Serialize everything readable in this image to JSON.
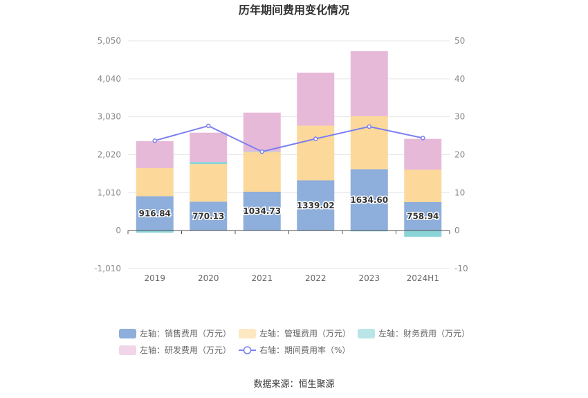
{
  "chart_data": {
    "type": "bar",
    "title": "历年期间费用变化情况",
    "categories": [
      "2019",
      "2020",
      "2021",
      "2022",
      "2023",
      "2024H1"
    ],
    "y_left": {
      "min": -1010,
      "max": 5050,
      "ticks": [
        -1010,
        0,
        1010,
        2020,
        3030,
        4040,
        5050
      ],
      "tick_labels": [
        "-1,010",
        "0",
        "1,010",
        "2,020",
        "3,030",
        "4,040",
        "5,050"
      ]
    },
    "y_right": {
      "min": -10,
      "max": 50,
      "ticks": [
        -10,
        0,
        10,
        20,
        30,
        40,
        50
      ],
      "tick_labels": [
        "-10",
        "0",
        "10",
        "20",
        "30",
        "40",
        "50"
      ]
    },
    "series": [
      {
        "name": "左轴：销售费用（万元）",
        "axis": "left",
        "kind": "stacked-bar",
        "color": "#8eaedb",
        "values": [
          916.84,
          770.13,
          1034.73,
          1339.02,
          1634.6,
          758.94
        ],
        "labels": [
          "916.84",
          "770.13",
          "1034.73",
          "1339.02",
          "1634.60",
          "758.94"
        ]
      },
      {
        "name": "左轴：管理费用（万元）",
        "axis": "left",
        "kind": "stacked-bar",
        "color": "#fcd99a",
        "values": [
          745,
          1000,
          1055,
          1455,
          1410,
          863
        ]
      },
      {
        "name": "左轴：财务费用（万元）",
        "axis": "left",
        "kind": "stacked-bar",
        "color": "#8ad4d8",
        "values": [
          -55,
          55,
          15,
          -10,
          -20,
          -165
        ]
      },
      {
        "name": "左轴：研发费用（万元）",
        "axis": "left",
        "kind": "stacked-bar",
        "color": "#e7b9d8",
        "values": [
          720,
          780,
          1035,
          1410,
          1730,
          820
        ]
      },
      {
        "name": "右轴：期间费用率（%）",
        "axis": "right",
        "kind": "line",
        "color": "#7b7ff0",
        "values": [
          23.7,
          27.6,
          20.8,
          24.2,
          27.4,
          24.4
        ]
      }
    ],
    "grid": true,
    "legend_position": "bottom"
  },
  "source": "数据来源：恒生聚源"
}
